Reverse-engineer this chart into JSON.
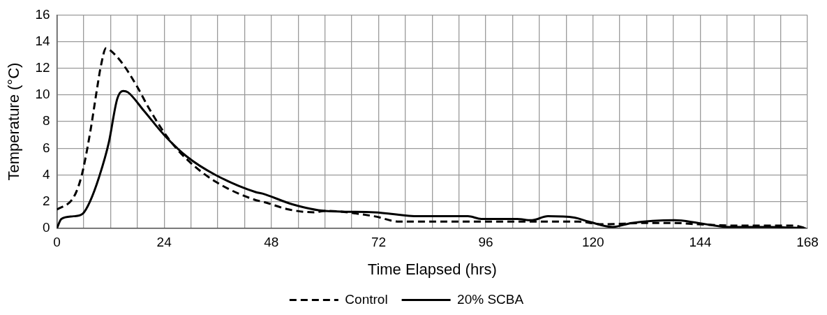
{
  "chart_data": {
    "type": "line",
    "xlabel": "Time Elapsed (hrs)",
    "ylabel": "Temperature (°C)",
    "xlim": [
      0,
      168
    ],
    "ylim": [
      0,
      16
    ],
    "xticks": [
      0,
      {
        "value": 6,
        "label": null
      },
      {
        "value": 12,
        "label": null
      },
      {
        "value": 18,
        "label": null
      },
      24,
      {
        "value": 30,
        "label": null
      },
      {
        "value": 36,
        "label": null
      },
      {
        "value": 42,
        "label": null
      },
      48,
      {
        "value": 54,
        "label": null
      },
      {
        "value": 60,
        "label": null
      },
      {
        "value": 66,
        "label": null
      },
      72,
      {
        "value": 78,
        "label": null
      },
      {
        "value": 84,
        "label": null
      },
      {
        "value": 90,
        "label": null
      },
      96,
      {
        "value": 102,
        "label": null
      },
      {
        "value": 108,
        "label": null
      },
      {
        "value": 114,
        "label": null
      },
      120,
      {
        "value": 126,
        "label": null
      },
      {
        "value": 132,
        "label": null
      },
      {
        "value": 138,
        "label": null
      },
      144,
      {
        "value": 150,
        "label": null
      },
      {
        "value": 156,
        "label": null
      },
      {
        "value": 162,
        "label": null
      },
      168
    ],
    "yticks": [
      0,
      2,
      4,
      6,
      8,
      10,
      12,
      14,
      16
    ],
    "grid": true,
    "legend": "bottom",
    "marker": "none",
    "series": [
      {
        "name": "Control",
        "color": "#000000",
        "line_style": "dashed",
        "x": [
          0,
          3.7,
          5.5,
          7.4,
          9,
          9.8,
          11,
          12.1,
          14.8,
          18,
          20.6,
          24.8,
          29,
          35.5,
          44.6,
          46,
          52,
          57.5,
          60,
          71,
          76.6,
          92,
          106,
          116.7,
          122,
          132.4,
          138,
          143.5,
          151.5,
          159.6,
          165,
          167.6
        ],
        "values": [
          1.4,
          2.3,
          3.9,
          7.1,
          10.5,
          12.1,
          13.5,
          13.3,
          12.3,
          10.6,
          9,
          6.8,
          5.2,
          3.5,
          2.1,
          2,
          1.4,
          1.2,
          1.3,
          0.9,
          0.5,
          0.5,
          0.5,
          0.5,
          0.3,
          0.4,
          0.4,
          0.3,
          0.2,
          0.2,
          0.2,
          0
        ]
      },
      {
        "name": "20% SCBA",
        "color": "#000000",
        "line_style": "solid",
        "x": [
          0,
          1,
          3.7,
          5.8,
          7.4,
          9.5,
          11.6,
          13.5,
          14.8,
          15.9,
          19.5,
          24,
          29,
          35.5,
          44.6,
          46,
          52.7,
          60,
          71,
          81,
          92,
          95,
          103,
          106.2,
          109.9,
          115.8,
          119,
          124.4,
          128.7,
          138.3,
          143.5,
          150,
          159.6,
          167.6
        ],
        "values": [
          0,
          0.7,
          0.9,
          1.1,
          2,
          3.9,
          6.4,
          9.7,
          10.3,
          10.2,
          8.8,
          7,
          5.4,
          4,
          2.7,
          2.6,
          1.8,
          1.3,
          1.2,
          0.9,
          0.9,
          0.7,
          0.7,
          0.6,
          0.9,
          0.8,
          0.5,
          0.1,
          0.4,
          0.6,
          0.4,
          0.1,
          0.1,
          0
        ]
      }
    ]
  }
}
